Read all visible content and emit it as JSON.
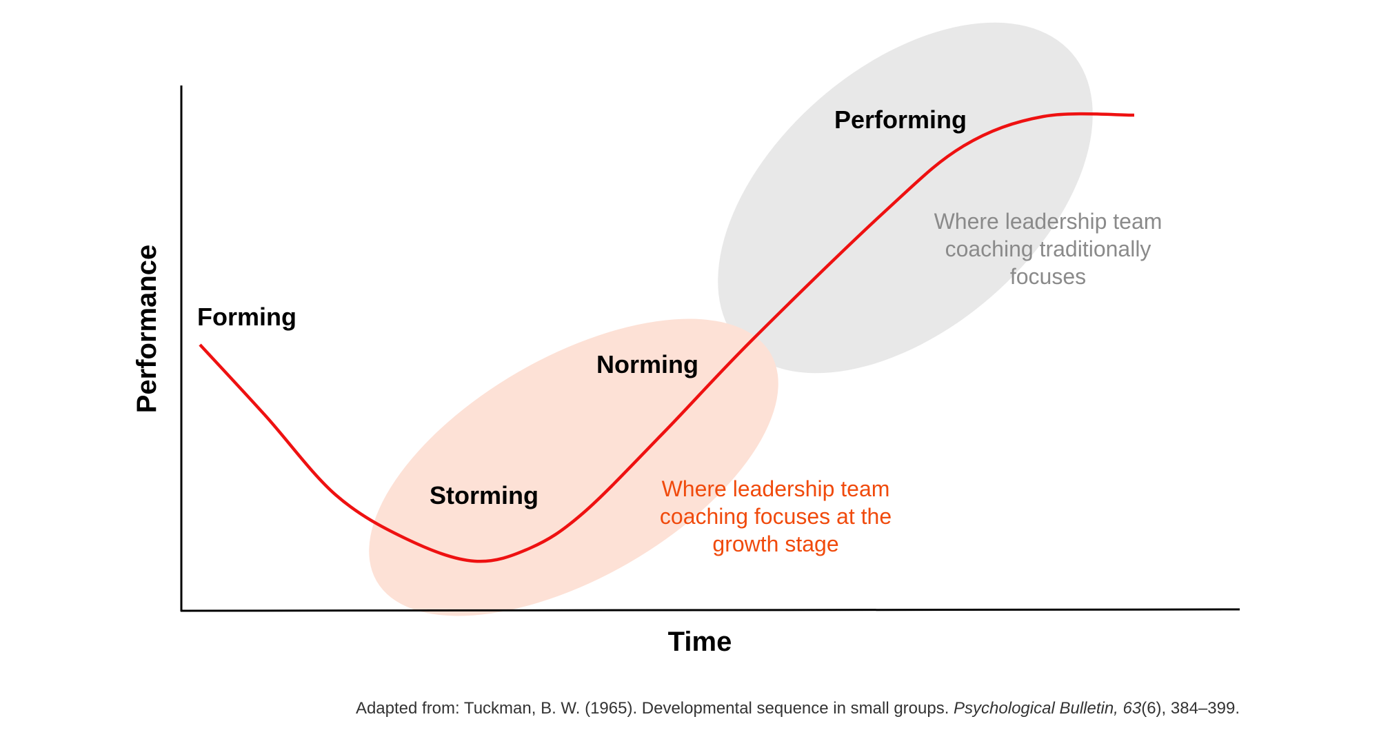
{
  "axes": {
    "y_label": "Performance",
    "x_label": "Time"
  },
  "stages": [
    "Forming",
    "Storming",
    "Norming",
    "Performing"
  ],
  "annotations": {
    "traditional": [
      "Where leadership team",
      "coaching traditionally",
      "focuses"
    ],
    "growth": [
      "Where leadership team",
      "coaching focuses at the",
      "growth stage"
    ]
  },
  "citation": {
    "text": "Adapted from: Tuckman, B. W. (1965). Developmental sequence in small groups.",
    "journal": "Psychological Bulletin,",
    "volume": "63",
    "rest": "(6), 384–399."
  }
}
